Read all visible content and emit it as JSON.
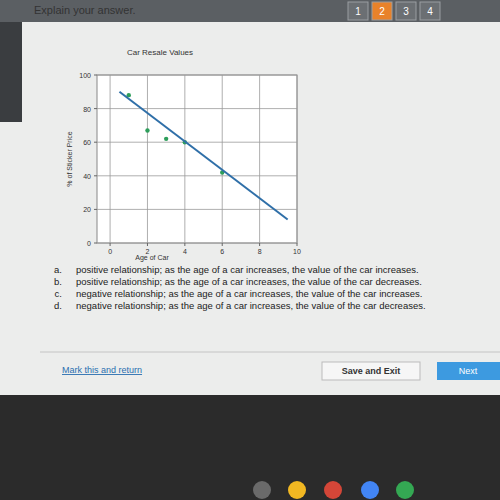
{
  "header": {
    "tabs": [
      "1",
      "2",
      "3",
      "4"
    ],
    "active_tab": "2"
  },
  "prompt": "Explain your answer.",
  "chart_data": {
    "type": "scatter",
    "title": "Car Resale Values",
    "x_label": "Age of Car",
    "y_label": "% of Sticker Price",
    "series": [
      {
        "type": "scatter",
        "marker": "circle",
        "color": "#2e9e5b",
        "x": [
          1,
          2,
          3,
          4,
          6
        ],
        "values": [
          88,
          67,
          62,
          60,
          42
        ]
      },
      {
        "type": "line",
        "line_style": "solid",
        "color": "#2f6fa8",
        "x": [
          0.5,
          9.5
        ],
        "values": [
          90,
          14
        ]
      }
    ],
    "xlim": [
      -0.7,
      10
    ],
    "ylim": [
      0,
      100
    ],
    "xticks": [
      0,
      2,
      4,
      6,
      8,
      10
    ],
    "yticks": [
      0,
      20,
      40,
      60,
      80,
      100
    ],
    "grid": true
  },
  "options": [
    {
      "letter": "a.",
      "text": "positive relationship; as the age of a car increases, the value of the car increases."
    },
    {
      "letter": "b.",
      "text": "positive relationship; as the age of a car increases, the value of the car decreases."
    },
    {
      "letter": "c.",
      "text": "negative relationship; as the age of a car increases, the value of the car increases."
    },
    {
      "letter": "d.",
      "text": "negative relationship; as the age of a car increases, the value of the car decreases."
    }
  ],
  "mark_link": "Mark this and return",
  "buttons": [
    "Save and Exit",
    "Next"
  ]
}
